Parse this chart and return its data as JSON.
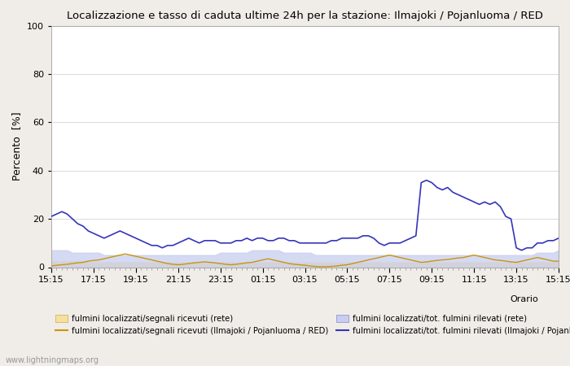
{
  "title": "Localizzazione e tasso di caduta ultime 24h per la stazione: Ilmajoki / Pojanluoma / RED",
  "ylabel": "Percento  [%]",
  "ylim": [
    0,
    100
  ],
  "yticks": [
    0,
    20,
    40,
    60,
    80,
    100
  ],
  "xtick_labels": [
    "15:15",
    "17:15",
    "19:15",
    "21:15",
    "23:15",
    "01:15",
    "03:15",
    "05:15",
    "07:15",
    "09:15",
    "11:15",
    "13:15",
    "15:15"
  ],
  "watermark": "www.lightningmaps.org",
  "bg_color": "#f0ede8",
  "plot_bg": "#ffffff",
  "n_points": 97,
  "rete_fill_signal": [
    2.5,
    2.5,
    2.5,
    2.5,
    2.5,
    2.5,
    2.5,
    2.0,
    2.0,
    2.0,
    2.0,
    2.0,
    2.0,
    2.0,
    2.0,
    2.0,
    2.0,
    2.0,
    2.0,
    2.0,
    2.0,
    2.0,
    2.0,
    2.0,
    2.0,
    2.0,
    2.0,
    2.0,
    2.0,
    2.0,
    2.0,
    2.0,
    2.0,
    2.0,
    2.0,
    2.0,
    2.0,
    2.0,
    2.0,
    2.0,
    2.0,
    2.0,
    2.0,
    2.0,
    2.0,
    2.0,
    2.0,
    2.0,
    2.0,
    2.0,
    2.0,
    2.0,
    2.0,
    2.0,
    2.0,
    2.0,
    2.0,
    2.0,
    2.0,
    2.0,
    2.0,
    2.0,
    2.0,
    2.0,
    2.0,
    2.0,
    2.0,
    2.0,
    2.0,
    2.0,
    2.0,
    2.0,
    2.0,
    2.0,
    2.0,
    2.0,
    2.0,
    2.0,
    2.0,
    2.0,
    2.0,
    2.0,
    2.0,
    2.0,
    2.0,
    2.0,
    2.0,
    2.0,
    2.0,
    2.0,
    2.0,
    2.0,
    2.0,
    2.0,
    2.0,
    2.0,
    2.5
  ],
  "rete_fill_tot": [
    7,
    7,
    7,
    7,
    6,
    6,
    6,
    6,
    6,
    6,
    5,
    5,
    5,
    5,
    5,
    5,
    5,
    5,
    5,
    5,
    5,
    5,
    5,
    5,
    5,
    5,
    5,
    5,
    5,
    5,
    5,
    5,
    6,
    6,
    6,
    6,
    6,
    6,
    7,
    7,
    7,
    7,
    7,
    7,
    6,
    6,
    6,
    6,
    6,
    6,
    5,
    5,
    5,
    5,
    5,
    5,
    5,
    5,
    5,
    5,
    5,
    5,
    5,
    5,
    5,
    5,
    5,
    5,
    5,
    5,
    5,
    5,
    5,
    5,
    5,
    5,
    5,
    5,
    5,
    5,
    5,
    5,
    5,
    5,
    5,
    5,
    5,
    5,
    5,
    5,
    5,
    5,
    6,
    6,
    6,
    6,
    7
  ],
  "ilmajoki_signal": [
    0.5,
    0.8,
    1.0,
    1.2,
    1.5,
    1.8,
    2.0,
    2.5,
    2.8,
    3.0,
    3.5,
    4.0,
    4.5,
    5.0,
    5.5,
    5.0,
    4.5,
    4.0,
    3.5,
    3.0,
    2.5,
    2.0,
    1.5,
    1.2,
    1.0,
    1.2,
    1.5,
    1.8,
    2.0,
    2.2,
    2.0,
    1.8,
    1.5,
    1.2,
    1.0,
    1.2,
    1.5,
    1.8,
    2.0,
    2.5,
    3.0,
    3.5,
    3.0,
    2.5,
    2.0,
    1.5,
    1.2,
    1.0,
    0.8,
    0.5,
    0.3,
    0.2,
    0.2,
    0.3,
    0.5,
    0.8,
    1.0,
    1.5,
    2.0,
    2.5,
    3.0,
    3.5,
    4.0,
    4.5,
    5.0,
    4.5,
    4.0,
    3.5,
    3.0,
    2.5,
    2.0,
    2.2,
    2.5,
    2.8,
    3.0,
    3.2,
    3.5,
    3.8,
    4.0,
    4.5,
    5.0,
    4.5,
    4.0,
    3.5,
    3.0,
    2.8,
    2.5,
    2.2,
    2.0,
    2.5,
    3.0,
    3.5,
    4.0,
    3.5,
    3.0,
    2.5,
    2.5
  ],
  "ilmajoki_tot": [
    21,
    22,
    23,
    22,
    20,
    18,
    17,
    15,
    14,
    13,
    12,
    13,
    14,
    15,
    14,
    13,
    12,
    11,
    10,
    9,
    9,
    8,
    9,
    9,
    10,
    11,
    12,
    11,
    10,
    11,
    11,
    11,
    10,
    10,
    10,
    11,
    11,
    12,
    11,
    12,
    12,
    11,
    11,
    12,
    12,
    11,
    11,
    10,
    10,
    10,
    10,
    10,
    10,
    11,
    11,
    12,
    12,
    12,
    12,
    13,
    13,
    12,
    10,
    9,
    10,
    10,
    10,
    11,
    12,
    13,
    35,
    36,
    35,
    33,
    32,
    33,
    31,
    30,
    29,
    28,
    27,
    26,
    27,
    26,
    27,
    25,
    21,
    20,
    8,
    7,
    8,
    8,
    10,
    10,
    11,
    11,
    12
  ]
}
